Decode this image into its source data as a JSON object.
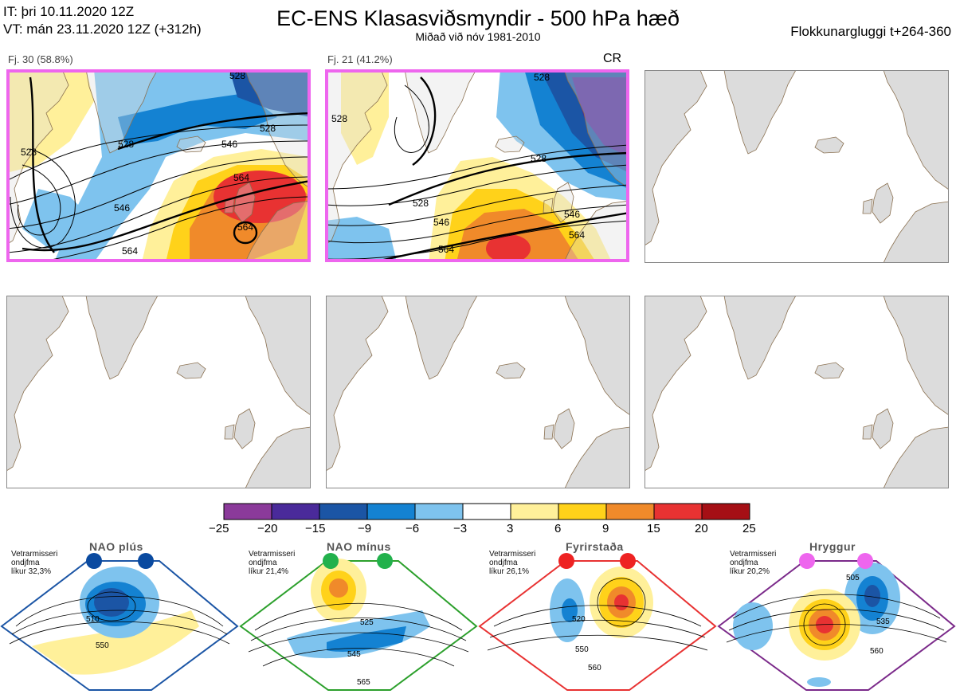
{
  "header": {
    "it": "IT: þri 10.11.2020 12Z",
    "vt": "VT: mán 23.11.2020 12Z  (+312h)",
    "title": "EC-ENS Klasasviðsmyndir - 500 hPa hæð",
    "subtitle": "Miðað við nóv 1981-2010",
    "window": "Flokkunargluggi t+264-360"
  },
  "clusters": [
    {
      "label": "Fj. 30 (58.8%)",
      "selected": true,
      "contour_labels": [
        "528",
        "528",
        "528",
        "546",
        "546",
        "564",
        "564",
        "564",
        "528"
      ]
    },
    {
      "label": "Fj. 21 (41.2%)",
      "selected": true,
      "tag": "CR",
      "contour_labels": [
        "528",
        "528",
        "528",
        "546",
        "546",
        "564",
        "564",
        "528"
      ]
    },
    {
      "label": "",
      "selected": false
    },
    {
      "label": "",
      "selected": false
    },
    {
      "label": "",
      "selected": false
    },
    {
      "label": "",
      "selected": false
    }
  ],
  "colorbar": {
    "ticks": [
      "−25",
      "−20",
      "−15",
      "−9",
      "−6",
      "−3",
      "3",
      "6",
      "9",
      "15",
      "20",
      "25"
    ],
    "colors": [
      "#8b3a9a",
      "#4a2a9a",
      "#1b55a5",
      "#1482d2",
      "#7ec3ee",
      "#ffffff",
      "#fff09a",
      "#ffd21a",
      "#f08a2a",
      "#e83232",
      "#a50f15"
    ]
  },
  "regimes": [
    {
      "name": "NAO plús",
      "stat_lines": [
        "Vetrarmisseri",
        "ondjfma",
        "líkur 32,3%"
      ],
      "color": "#1b55a5",
      "marker": "#0a4aa0",
      "labels": [
        "510",
        "550"
      ]
    },
    {
      "name": "NAO mínus",
      "stat_lines": [
        "Vetrarmisseri",
        "ondjfma",
        "líkur 21,4%"
      ],
      "color": "#2ca02c",
      "marker": "#22b14c",
      "labels": [
        "525",
        "545",
        "565"
      ]
    },
    {
      "name": "Fyrirstaða",
      "stat_lines": [
        "Vetrarmisseri",
        "ondjfma",
        "líkur 26,1%"
      ],
      "color": "#e83232",
      "marker": "#ee2222",
      "labels": [
        "520",
        "550",
        "560"
      ]
    },
    {
      "name": "Hryggur",
      "stat_lines": [
        "Vetrarmisseri",
        "ondjfma",
        "líkur 20,2%"
      ],
      "color": "#7b2a8a",
      "marker": "#ee66ee",
      "labels": [
        "505",
        "535",
        "560"
      ]
    }
  ]
}
